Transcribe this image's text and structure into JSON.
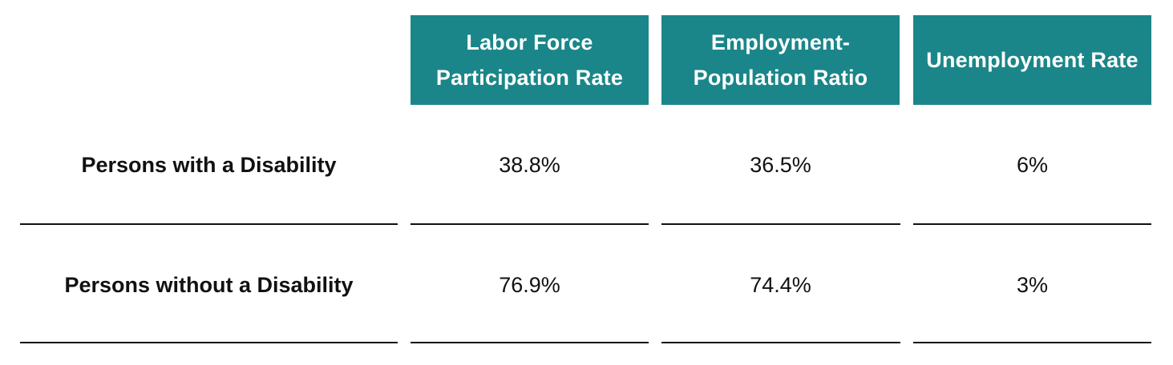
{
  "chart_data": {
    "type": "table",
    "columns": [
      "Labor Force\nParticipation Rate",
      "Employment-\nPopulation Ratio",
      "Unemployment Rate"
    ],
    "rows": [
      {
        "label": "Persons with a Disability",
        "values": [
          "38.8%",
          "36.5%",
          "6%"
        ]
      },
      {
        "label": "Persons without a Disability",
        "values": [
          "76.9%",
          "74.4%",
          "3%"
        ]
      }
    ]
  },
  "colors": {
    "header_bg": "#1b8689",
    "header_text": "#ffffff",
    "text": "#111111",
    "rule": "#111111"
  }
}
